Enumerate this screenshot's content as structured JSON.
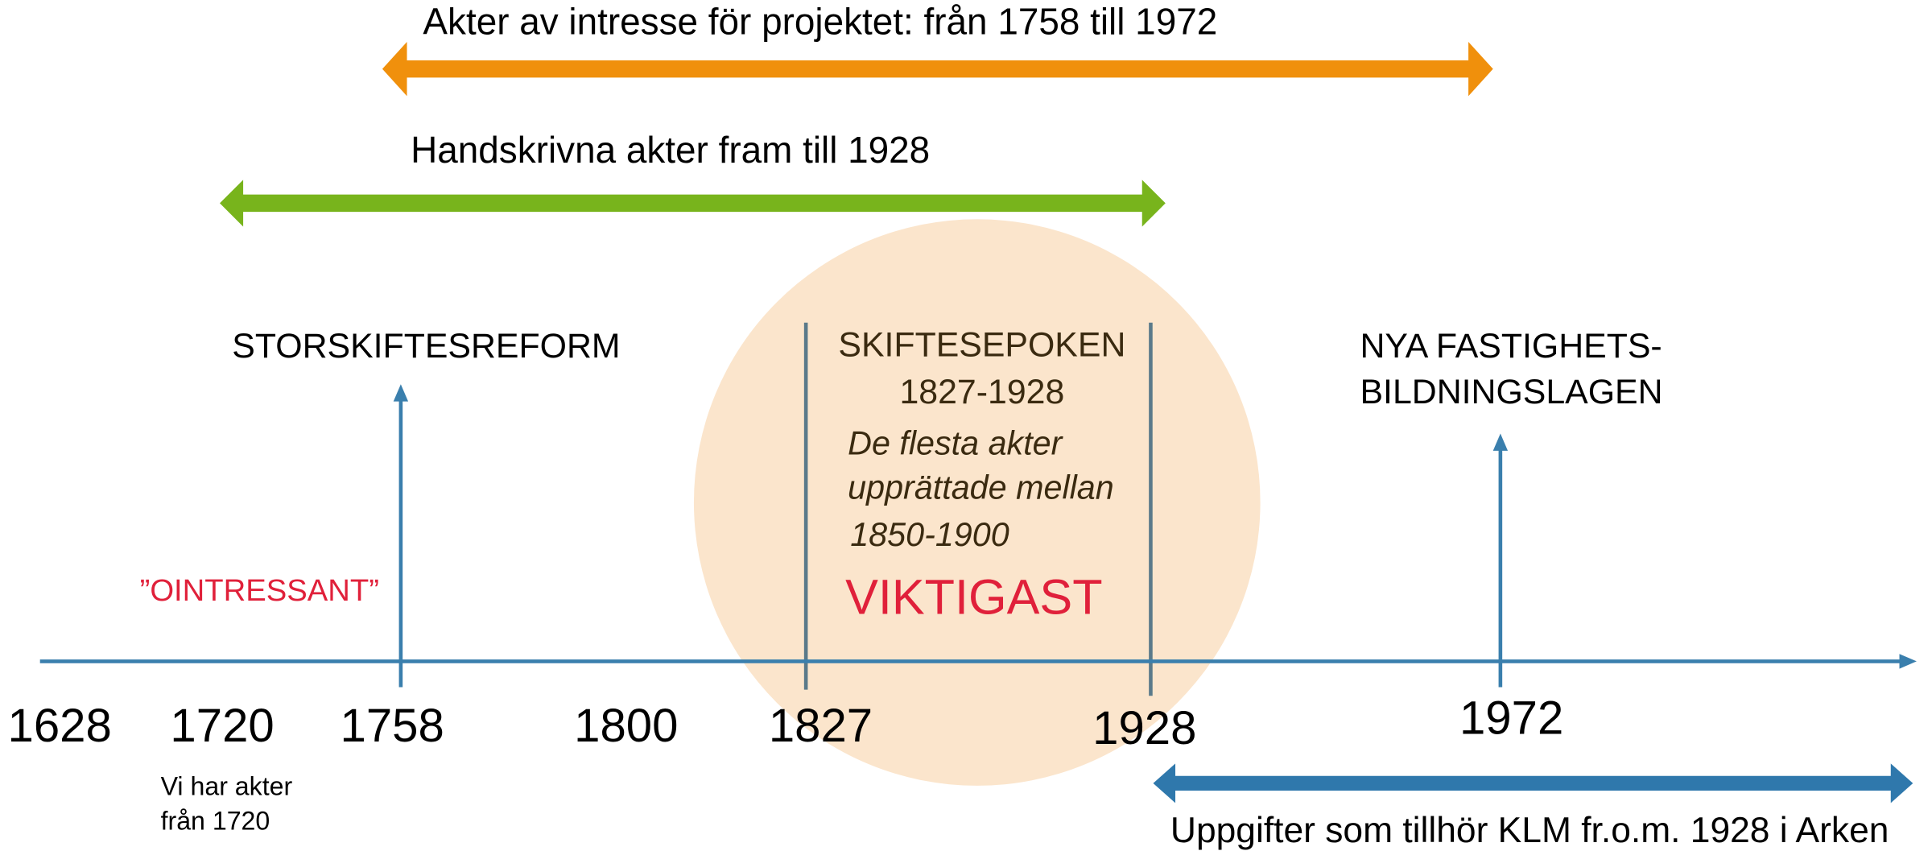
{
  "ranges": [
    {
      "label": "Akter av intresse för projektet: från 1758 till 1972"
    },
    {
      "label": "Handskrivna akter fram till 1928"
    },
    {
      "label": "Uppgifter som tillhör KLM fr.o.m. 1928 i Arken"
    }
  ],
  "years": [
    "1628",
    "1720",
    "1758",
    "1800",
    "1827",
    "1928",
    "1972"
  ],
  "events": {
    "storskifte": "STORSKIFTESREFORM",
    "ointressant": "”OINTRESSANT”",
    "epoch_title": "SKIFTESEPOKEN",
    "epoch_years": "1827-1928",
    "epoch_note": [
      "De flesta akter",
      "upprättade mellan",
      "1850-1900"
    ],
    "viktigast": "VIKTIGAST",
    "nya": [
      "NYA FASTIGHETS-",
      "BILDNINGSLAGEN"
    ],
    "note_1720": [
      "Vi har akter",
      "från 1720"
    ]
  }
}
